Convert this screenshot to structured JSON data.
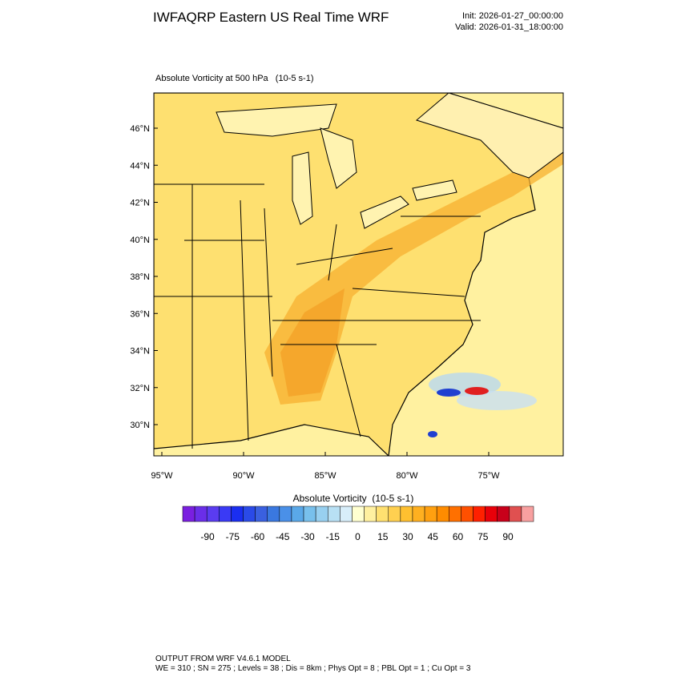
{
  "header": {
    "title": "IWFAQRP Eastern US Real Time WRF",
    "init": "Init: 2026-01-27_00:00:00",
    "valid": "Valid: 2026-01-31_18:00:00"
  },
  "panel": {
    "title": "Absolute Vorticity at 500 hPa   (10-5 s-1)",
    "lat_labels": [
      "46°N",
      "44°N",
      "42°N",
      "40°N",
      "38°N",
      "36°N",
      "34°N",
      "32°N",
      "30°N"
    ],
    "lon_labels": [
      "95°W",
      "90°W",
      "85°W",
      "80°W",
      "75°W"
    ]
  },
  "colorbar": {
    "title": "Absolute Vorticity  (10-5 s-1)",
    "ticks": [
      -90,
      -75,
      -60,
      -45,
      -30,
      -15,
      0,
      15,
      30,
      45,
      60,
      75,
      90
    ],
    "colors": [
      "#7a1fe0",
      "#6a2ee8",
      "#5a3cf0",
      "#3a3af5",
      "#1a2ef0",
      "#2a4ae8",
      "#3a60e0",
      "#3a78e0",
      "#4a90e8",
      "#5aa8e8",
      "#78c0ec",
      "#98d0f0",
      "#b8e0f4",
      "#d8eefa",
      "#ffffd0",
      "#fff0a0",
      "#ffe070",
      "#ffd050",
      "#ffc030",
      "#ffb020",
      "#ffa010",
      "#ff8c00",
      "#ff7000",
      "#ff5000",
      "#ff2000",
      "#e8000a",
      "#c8001a",
      "#e05050",
      "#f8a0a0"
    ]
  },
  "footer": {
    "line1": "OUTPUT FROM WRF V4.6.1 MODEL",
    "line2": "WE = 310 ; SN = 275 ; Levels = 38 ; Dis = 8km ; Phys Opt = 8 ; PBL Opt = 1 ; Cu Opt = 3"
  }
}
